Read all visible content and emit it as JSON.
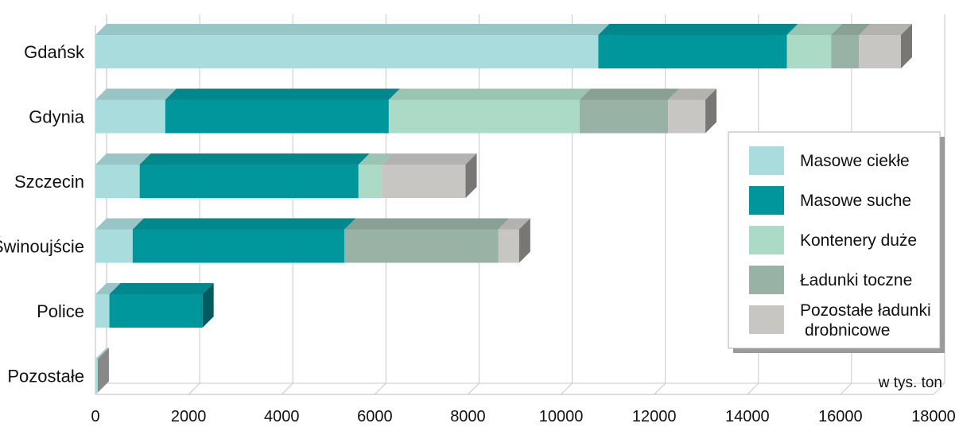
{
  "chart_data": {
    "type": "bar",
    "orientation": "horizontal",
    "stacked": true,
    "style": "3d",
    "categories": [
      "Gdańsk",
      "Gdynia",
      "Szczecin",
      "Świnoujście",
      "Police",
      "Pozostałe"
    ],
    "series": [
      {
        "name": "Masowe ciekłe",
        "color": "#a9dcdc",
        "values": [
          10800,
          1500,
          950,
          800,
          300,
          50
        ]
      },
      {
        "name": "Masowe suche",
        "color": "#00979c",
        "values": [
          4050,
          4800,
          4700,
          4550,
          2000,
          0
        ]
      },
      {
        "name": "Kontenery duże",
        "color": "#abdbc6",
        "values": [
          950,
          4100,
          500,
          0,
          0,
          0
        ]
      },
      {
        "name": "Ładunki toczne",
        "color": "#98b3a6",
        "values": [
          600,
          1900,
          0,
          3300,
          0,
          0
        ]
      },
      {
        "name": "Pozostałe ładunki drobnicowe",
        "color": "#c8c6c2",
        "values": [
          900,
          800,
          1800,
          450,
          0,
          0
        ]
      }
    ],
    "legend_lines": [
      [
        "Masowe ciekłe"
      ],
      [
        "Masowe suche"
      ],
      [
        "Kontenery duże"
      ],
      [
        "Ładunki toczne"
      ],
      [
        "Pozostałe ładunki",
        "drobnicowe"
      ]
    ],
    "xlim": [
      0,
      18000
    ],
    "xticks": [
      "0",
      "2000",
      "4000",
      "6000",
      "8000",
      "10000",
      "12000",
      "14000",
      "16000",
      "18000"
    ],
    "unit_label": "w tys. ton",
    "xlabel": "",
    "ylabel": "",
    "title": "",
    "grid": true,
    "legend_position": "right"
  }
}
